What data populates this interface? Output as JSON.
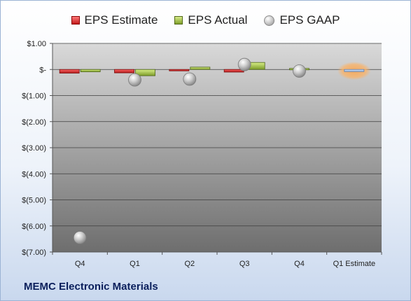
{
  "chart_data": {
    "type": "bar",
    "title": "",
    "categories": [
      "Q4",
      "Q1",
      "Q2",
      "Q3",
      "Q4",
      "Q1 Estimate"
    ],
    "series": [
      {
        "name": "EPS Estimate",
        "kind": "bar",
        "color": "#c41e1e",
        "values": [
          -0.14,
          -0.13,
          -0.05,
          -0.1,
          null,
          -0.08
        ]
      },
      {
        "name": "EPS Actual",
        "kind": "bar",
        "color": "#8db33a",
        "values": [
          -0.09,
          -0.24,
          0.09,
          0.27,
          0.04,
          null
        ]
      },
      {
        "name": "EPS GAAP",
        "kind": "marker",
        "color": "#9a9a9a",
        "values": [
          -6.45,
          -0.4,
          -0.37,
          0.19,
          -0.06,
          null
        ]
      }
    ],
    "estimate_highlight_color": "#f5a85a",
    "ylim": [
      -7,
      1
    ],
    "yticks": [
      1,
      0,
      -1,
      -2,
      -3,
      -4,
      -5,
      -6,
      -7
    ],
    "ytick_labels": [
      "$1.00",
      "$-",
      "$(1.00)",
      "$(2.00)",
      "$(3.00)",
      "$(4.00)",
      "$(5.00)",
      "$(6.00)",
      "$(7.00)"
    ],
    "grid": true,
    "legend_position": "top-center",
    "company": "MEMC Electronic Materials"
  }
}
